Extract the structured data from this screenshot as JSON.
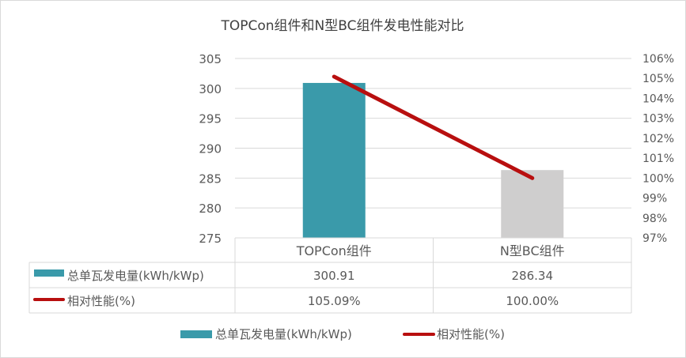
{
  "chart_data": {
    "type": "bar",
    "title": "TOPCon组件和N型BC组件发电性能对比",
    "categories": [
      "TOPCon组件",
      "N型BC组件"
    ],
    "series": [
      {
        "name": "总单瓦发电量(kWh/kWp)",
        "type": "bar",
        "axis": "left",
        "values": [
          300.91,
          286.34
        ],
        "value_labels": [
          "300.91",
          "286.34"
        ]
      },
      {
        "name": "相对性能(%)",
        "type": "line",
        "axis": "right",
        "values": [
          105.09,
          100.0
        ],
        "value_labels": [
          "105.09%",
          "100.00%"
        ]
      }
    ],
    "bar_colors": [
      "#3a9aaa",
      "#cfcece"
    ],
    "line_color": "#b80f0f",
    "y_left": {
      "min": 275,
      "max": 305,
      "step": 5,
      "ticks": [
        "275",
        "280",
        "285",
        "290",
        "295",
        "300",
        "305"
      ]
    },
    "y_right": {
      "min": 97,
      "max": 106,
      "step": 1,
      "ticks": [
        "97%",
        "98%",
        "99%",
        "100%",
        "101%",
        "102%",
        "103%",
        "104%",
        "105%",
        "106%"
      ]
    },
    "grid": true,
    "data_table": true,
    "legend": "bottom"
  }
}
